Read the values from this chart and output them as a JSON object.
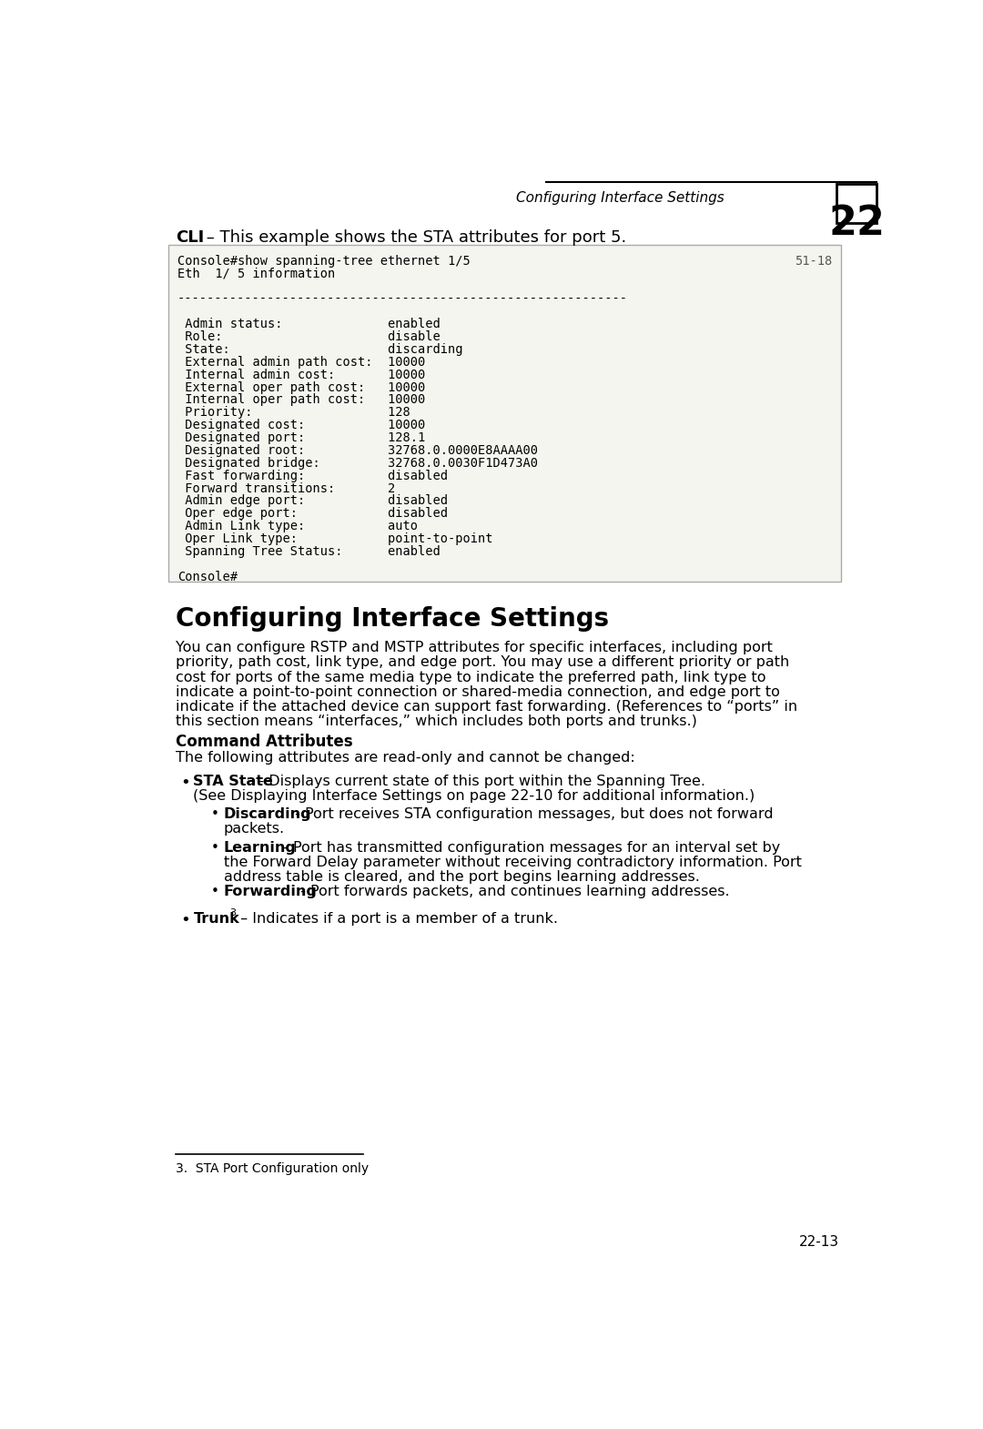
{
  "page_bg": "#ffffff",
  "header_text": "Configuring Interface Settings",
  "header_number": "22",
  "cli_label": "CLI",
  "cli_intro": " – This example shows the STA attributes for port 5.",
  "code_lines": [
    "Console#show spanning-tree ethernet 1/5",
    "51-18",
    "Eth  1/ 5 information",
    "",
    "------------------------------------------------------------",
    "",
    " Admin status:              enabled",
    " Role:                      disable",
    " State:                     discarding",
    " External admin path cost:  10000",
    " Internal admin cost:       10000",
    " External oper path cost:   10000",
    " Internal oper path cost:   10000",
    " Priority:                  128",
    " Designated cost:           10000",
    " Designated port:           128.1",
    " Designated root:           32768.0.0000E8AAAA00",
    " Designated bridge:         32768.0.0030F1D473A0",
    " Fast forwarding:           disabled",
    " Forward transitions:       2",
    " Admin edge port:           disabled",
    " Oper edge port:            disabled",
    " Admin Link type:           auto",
    " Oper Link type:            point-to-point",
    " Spanning Tree Status:      enabled",
    "",
    "Console#"
  ],
  "section_title": "Configuring Interface Settings",
  "body_lines": [
    "You can configure RSTP and MSTP attributes for specific interfaces, including port",
    "priority, path cost, link type, and edge port. You may use a different priority or path",
    "cost for ports of the same media type to indicate the preferred path, link type to",
    "indicate a point-to-point connection or shared-media connection, and edge port to",
    "indicate if the attached device can support fast forwarding. (References to “ports” in",
    "this section means “interfaces,” which includes both ports and trunks.)"
  ],
  "cmd_attr_title": "Command Attributes",
  "cmd_attr_body": "The following attributes are read-only and cannot be changed:",
  "footnote": "3.  STA Port Configuration only",
  "page_number": "22-13",
  "code_bg": "#f5f5f0",
  "code_border": "#aaaaaa"
}
